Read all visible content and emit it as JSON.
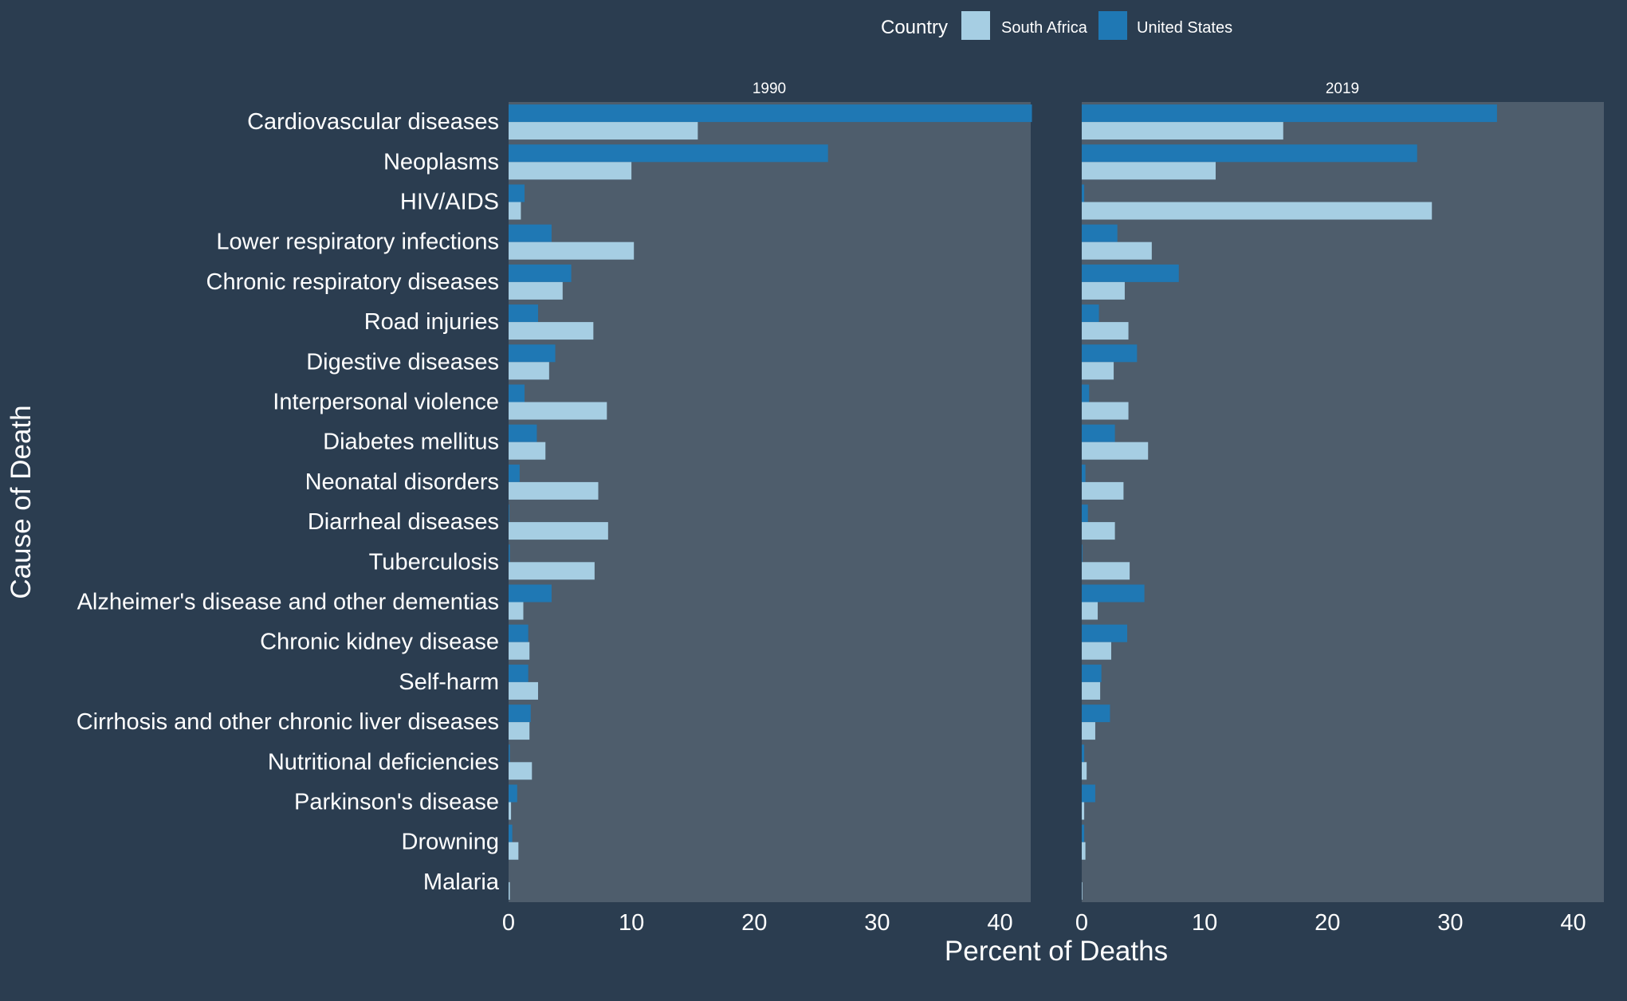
{
  "chart_data": {
    "type": "bar",
    "orientation": "horizontal",
    "xlabel": "Percent of Deaths",
    "ylabel": "Cause of Death",
    "xlim": [
      0,
      42.5
    ],
    "xticks": [
      "0",
      "10",
      "20",
      "30",
      "40"
    ],
    "grid": false,
    "legend": {
      "title": "Country",
      "position": "top",
      "items": [
        "South Africa",
        "United States"
      ]
    },
    "colors": {
      "South Africa": "#a6cee3",
      "United States": "#1f78b4",
      "panel": "#4e5d6c",
      "background": "#2b3d50"
    },
    "categories": [
      "Cardiovascular diseases",
      "Neoplasms",
      "HIV/AIDS",
      "Lower respiratory infections",
      "Chronic respiratory diseases",
      "Road injuries",
      "Digestive diseases",
      "Interpersonal violence",
      "Diabetes mellitus",
      "Neonatal disorders",
      "Diarrheal diseases",
      "Tuberculosis",
      "Alzheimer's disease and other dementias",
      "Chronic kidney disease",
      "Self-harm",
      "Cirrhosis and other chronic liver diseases",
      "Nutritional deficiencies",
      "Parkinson's disease",
      "Drowning",
      "Malaria"
    ],
    "panels": [
      {
        "title": "1990",
        "series": [
          {
            "name": "United States",
            "values": [
              42.6,
              26.0,
              1.3,
              3.5,
              5.1,
              2.4,
              3.8,
              1.3,
              2.3,
              0.9,
              0.05,
              0.1,
              3.5,
              1.6,
              1.6,
              1.8,
              0.1,
              0.7,
              0.3,
              0.0
            ]
          },
          {
            "name": "South Africa",
            "values": [
              15.4,
              10.0,
              1.0,
              10.2,
              4.4,
              6.9,
              3.3,
              8.0,
              3.0,
              7.3,
              8.1,
              7.0,
              1.2,
              1.7,
              2.4,
              1.7,
              1.9,
              0.2,
              0.8,
              0.1
            ]
          }
        ]
      },
      {
        "title": "2019",
        "series": [
          {
            "name": "United States",
            "values": [
              33.8,
              27.3,
              0.2,
              2.9,
              7.9,
              1.4,
              4.5,
              0.6,
              2.7,
              0.3,
              0.5,
              0.05,
              5.1,
              3.7,
              1.6,
              2.3,
              0.2,
              1.1,
              0.2,
              0.0
            ]
          },
          {
            "name": "South Africa",
            "values": [
              16.4,
              10.9,
              28.5,
              5.7,
              3.5,
              3.8,
              2.6,
              3.8,
              5.4,
              3.4,
              2.7,
              3.9,
              1.3,
              2.4,
              1.5,
              1.1,
              0.4,
              0.2,
              0.3,
              0.05
            ]
          }
        ]
      }
    ]
  }
}
